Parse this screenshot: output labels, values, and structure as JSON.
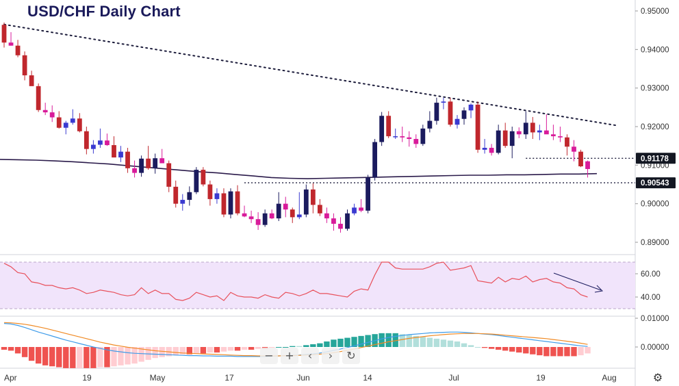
{
  "title": "USD/CHF Daily Chart",
  "colors": {
    "up": "#1b1b5e",
    "down": "#c0272d",
    "doji_up": "#3a3ad0",
    "doji_down": "#d81b9a",
    "ma": "#2a1a4a",
    "rsi": "#e8505b",
    "rsi_band": "#f1e4fb",
    "macd_line": "#3d9be9",
    "signal_line": "#f08a24",
    "hist_up_strong": "#26a69a",
    "hist_up_weak": "#b2dfdb",
    "hist_down_strong": "#ef5350",
    "hist_down_weak": "#ffcdd2",
    "badge_bg": "#131722"
  },
  "chart_data": [
    {
      "type": "candlestick",
      "title": "USD/CHF Daily Chart",
      "x_tick_labels": [
        "Apr",
        "19",
        "May",
        "17",
        "Jun",
        "14",
        "Jul",
        "19",
        "Aug"
      ],
      "y_tick_labels": [
        "0.95000",
        "0.94000",
        "0.93000",
        "0.92000",
        "0.91000",
        "0.90000",
        "0.89000"
      ],
      "ylim": [
        0.8875,
        0.9515
      ],
      "candles": [
        [
          0.9464,
          0.947,
          0.9405,
          0.9418
        ],
        [
          0.9418,
          0.9445,
          0.941,
          0.941
        ],
        [
          0.941,
          0.9425,
          0.938,
          0.9385
        ],
        [
          0.9385,
          0.9395,
          0.932,
          0.9333
        ],
        [
          0.9333,
          0.9345,
          0.931,
          0.9305
        ],
        [
          0.9305,
          0.9312,
          0.9238,
          0.9243
        ],
        [
          0.9243,
          0.9262,
          0.923,
          0.9237
        ],
        [
          0.9237,
          0.9255,
          0.9212,
          0.9224
        ],
        [
          0.9224,
          0.924,
          0.9195,
          0.9197
        ],
        [
          0.9197,
          0.9215,
          0.918,
          0.921
        ],
        [
          0.921,
          0.9245,
          0.9205,
          0.9221
        ],
        [
          0.9221,
          0.9235,
          0.9185,
          0.9188
        ],
        [
          0.9188,
          0.92,
          0.9128,
          0.9142
        ],
        [
          0.9142,
          0.9165,
          0.913,
          0.9153
        ],
        [
          0.9153,
          0.9195,
          0.9145,
          0.9164
        ],
        [
          0.9164,
          0.9182,
          0.915,
          0.9152
        ],
        [
          0.9152,
          0.9175,
          0.912,
          0.912
        ],
        [
          0.912,
          0.915,
          0.9108,
          0.9135
        ],
        [
          0.9135,
          0.9145,
          0.908,
          0.9092
        ],
        [
          0.9092,
          0.9112,
          0.9068,
          0.908
        ],
        [
          0.908,
          0.9125,
          0.907,
          0.9117
        ],
        [
          0.9117,
          0.915,
          0.9088,
          0.9092
        ],
        [
          0.9092,
          0.913,
          0.9078,
          0.9118
        ],
        [
          0.9118,
          0.9142,
          0.9105,
          0.9105
        ],
        [
          0.9105,
          0.9112,
          0.903,
          0.9044
        ],
        [
          0.9044,
          0.906,
          0.899,
          0.9
        ],
        [
          0.9,
          0.9025,
          0.8982,
          0.901
        ],
        [
          0.901,
          0.9045,
          0.8995,
          0.903
        ],
        [
          0.903,
          0.9095,
          0.9025,
          0.9088
        ],
        [
          0.9088,
          0.9095,
          0.9045,
          0.905
        ],
        [
          0.905,
          0.906,
          0.8995,
          0.9012
        ],
        [
          0.9012,
          0.904,
          0.9,
          0.9027
        ],
        [
          0.9027,
          0.904,
          0.8965,
          0.8972
        ],
        [
          0.8972,
          0.904,
          0.8962,
          0.9032
        ],
        [
          0.9032,
          0.9048,
          0.897,
          0.8975
        ],
        [
          0.8975,
          0.8995,
          0.8965,
          0.8967
        ],
        [
          0.8967,
          0.8982,
          0.895,
          0.896
        ],
        [
          0.896,
          0.8978,
          0.8932,
          0.8945
        ],
        [
          0.8945,
          0.8985,
          0.894,
          0.8975
        ],
        [
          0.8975,
          0.8985,
          0.896,
          0.8962
        ],
        [
          0.8962,
          0.903,
          0.8955,
          0.9
        ],
        [
          0.9,
          0.9018,
          0.8965,
          0.8985
        ],
        [
          0.8985,
          0.899,
          0.895,
          0.8965
        ],
        [
          0.8965,
          0.903,
          0.896,
          0.8972
        ],
        [
          0.8972,
          0.905,
          0.8965,
          0.9037
        ],
        [
          0.9037,
          0.9053,
          0.8975,
          0.8997
        ],
        [
          0.8997,
          0.9012,
          0.8968,
          0.8975
        ],
        [
          0.8975,
          0.899,
          0.895,
          0.8962
        ],
        [
          0.8962,
          0.8975,
          0.893,
          0.8948
        ],
        [
          0.8948,
          0.8965,
          0.8925,
          0.8935
        ],
        [
          0.8935,
          0.8985,
          0.893,
          0.8975
        ],
        [
          0.8975,
          0.9,
          0.897,
          0.899
        ],
        [
          0.899,
          0.9012,
          0.8978,
          0.8982
        ],
        [
          0.8982,
          0.9075,
          0.8975,
          0.9068
        ],
        [
          0.9068,
          0.9168,
          0.906,
          0.916
        ],
        [
          0.916,
          0.9238,
          0.915,
          0.9228
        ],
        [
          0.9228,
          0.924,
          0.917,
          0.9175
        ],
        [
          0.9175,
          0.9195,
          0.9168,
          0.9175
        ],
        [
          0.9175,
          0.92,
          0.916,
          0.9172
        ],
        [
          0.9172,
          0.9188,
          0.9148,
          0.9168
        ],
        [
          0.9168,
          0.918,
          0.9145,
          0.9155
        ],
        [
          0.9155,
          0.9205,
          0.915,
          0.9195
        ],
        [
          0.9195,
          0.924,
          0.9185,
          0.9215
        ],
        [
          0.9215,
          0.9275,
          0.9205,
          0.9262
        ],
        [
          0.9262,
          0.9275,
          0.9245,
          0.9265
        ],
        [
          0.9265,
          0.9275,
          0.92,
          0.9205
        ],
        [
          0.9205,
          0.923,
          0.9195,
          0.922
        ],
        [
          0.922,
          0.925,
          0.9205,
          0.9242
        ],
        [
          0.9242,
          0.926,
          0.9222,
          0.9257
        ],
        [
          0.9257,
          0.9265,
          0.9132,
          0.914
        ],
        [
          0.914,
          0.9168,
          0.913,
          0.9145
        ],
        [
          0.9145,
          0.9155,
          0.9125,
          0.9132
        ],
        [
          0.9132,
          0.9205,
          0.9128,
          0.919
        ],
        [
          0.919,
          0.921,
          0.9145,
          0.915
        ],
        [
          0.915,
          0.92,
          0.9118,
          0.9188
        ],
        [
          0.9188,
          0.9198,
          0.917,
          0.918
        ],
        [
          0.918,
          0.924,
          0.9168,
          0.921
        ],
        [
          0.921,
          0.9225,
          0.9168,
          0.9185
        ],
        [
          0.9185,
          0.9205,
          0.9165,
          0.919
        ],
        [
          0.919,
          0.9232,
          0.9182,
          0.918
        ],
        [
          0.918,
          0.9205,
          0.9165,
          0.9175
        ],
        [
          0.9175,
          0.92,
          0.916,
          0.9172
        ],
        [
          0.9172,
          0.918,
          0.9125,
          0.9148
        ],
        [
          0.9148,
          0.9165,
          0.911,
          0.9135
        ],
        [
          0.9135,
          0.914,
          0.9095,
          0.9097
        ],
        [
          0.909,
          0.9112,
          0.9068,
          0.911
        ]
      ],
      "moving_average": [
        0.9115,
        0.9114,
        0.9113,
        0.9111,
        0.9109,
        0.9106,
        0.9103,
        0.9099,
        0.9095,
        0.9091,
        0.9087,
        0.9083,
        0.908,
        0.9076,
        0.9072,
        0.9068,
        0.9066,
        0.9065,
        0.9066,
        0.9067,
        0.9068,
        0.9069,
        0.907,
        0.9071,
        0.9072,
        0.9073,
        0.9074,
        0.9074,
        0.9075,
        0.9075,
        0.9076,
        0.9077,
        0.9077,
        0.9078
      ],
      "trendline": {
        "start": [
          0,
          0.9465
        ],
        "end": [
          86,
          0.9208
        ]
      },
      "support_level_1": "0.91178",
      "support_level_2": "0.90543"
    },
    {
      "type": "line",
      "name": "RSI",
      "y_tick_labels": [
        "60.00",
        "40.00"
      ],
      "ylim": [
        23,
        75
      ],
      "band": [
        30,
        70
      ],
      "values": [
        69,
        66,
        61,
        60,
        53,
        52,
        50,
        50,
        48,
        47,
        48,
        46,
        43,
        44,
        46,
        45,
        44,
        42,
        41,
        42,
        48,
        43,
        46,
        43,
        43,
        38,
        37,
        39,
        44,
        42,
        40,
        41,
        37,
        44,
        41,
        40,
        40,
        39,
        42,
        40,
        39,
        44,
        43,
        41,
        43,
        46,
        43,
        43,
        42,
        41,
        40,
        45,
        47,
        46,
        59,
        70,
        70,
        65,
        64,
        64,
        64,
        64,
        66,
        69,
        70,
        63,
        64,
        65,
        67,
        54,
        53,
        52,
        57,
        53,
        56,
        55,
        58,
        53,
        55,
        56,
        53,
        52,
        48,
        47,
        42,
        40
      ]
    },
    {
      "type": "bar",
      "name": "MACD",
      "y_tick_labels": [
        "0.01000",
        "0.00000"
      ],
      "ylim": [
        -0.0042,
        0.0115
      ],
      "macd": [
        0.0082,
        0.008,
        0.0075,
        0.0068,
        0.006,
        0.0052,
        0.0045,
        0.0038,
        0.0031,
        0.0024,
        0.0018,
        0.0012,
        0.0006,
        0.0,
        -0.0005,
        -0.001,
        -0.0014,
        -0.0017,
        -0.002,
        -0.0022,
        -0.0023,
        -0.0024,
        -0.0025,
        -0.0026,
        -0.0027,
        -0.0028,
        -0.0029,
        -0.003,
        -0.003,
        -0.0031,
        -0.0031,
        -0.0032,
        -0.0032,
        -0.0032,
        -0.0033,
        -0.0033,
        -0.0033,
        -0.0033,
        -0.0033,
        -0.0032,
        -0.0031,
        -0.003,
        -0.0029,
        -0.0028,
        -0.0026,
        -0.0024,
        -0.0021,
        -0.0017,
        -0.0012,
        -0.0007,
        -0.0002,
        0.0004,
        0.001,
        0.0016,
        0.0022,
        0.0028,
        0.0033,
        0.0037,
        0.004,
        0.0043,
        0.0045,
        0.0047,
        0.0049,
        0.005,
        0.0051,
        0.0052,
        0.0052,
        0.0051,
        0.0049,
        0.0047,
        0.0045,
        0.0043,
        0.004,
        0.0037,
        0.0034,
        0.0031,
        0.0028,
        0.0025,
        0.0022,
        0.0019,
        0.0016,
        0.0013,
        0.001,
        0.0007,
        0.0004,
        0.0002
      ],
      "signal": [
        0.0085,
        0.0084,
        0.0082,
        0.0079,
        0.0075,
        0.007,
        0.0065,
        0.0059,
        0.0053,
        0.0047,
        0.0041,
        0.0035,
        0.0029,
        0.0023,
        0.0017,
        0.0012,
        0.0007,
        0.0003,
        -0.0001,
        -0.0004,
        -0.0007,
        -0.001,
        -0.0013,
        -0.0015,
        -0.0017,
        -0.0019,
        -0.0021,
        -0.0022,
        -0.0023,
        -0.0024,
        -0.0025,
        -0.0026,
        -0.0027,
        -0.0028,
        -0.0029,
        -0.003,
        -0.003,
        -0.0031,
        -0.0031,
        -0.0031,
        -0.0031,
        -0.003,
        -0.003,
        -0.0029,
        -0.0028,
        -0.0027,
        -0.0025,
        -0.0023,
        -0.002,
        -0.0016,
        -0.0012,
        -0.0007,
        -0.0002,
        0.0003,
        0.0008,
        0.0013,
        0.0018,
        0.0022,
        0.0026,
        0.003,
        0.0033,
        0.0036,
        0.0039,
        0.0041,
        0.0043,
        0.0045,
        0.0046,
        0.0047,
        0.0047,
        0.0047,
        0.0046,
        0.0045,
        0.0043,
        0.0041,
        0.0039,
        0.0037,
        0.0035,
        0.0033,
        0.0031,
        0.0029,
        0.0026,
        0.0023,
        0.002,
        0.0017,
        0.0013,
        0.0009
      ]
    }
  ],
  "toolbar": {
    "zoom_out": "−",
    "zoom_in": "+",
    "scroll_left": "‹",
    "scroll_right": "›",
    "reset": "↻"
  },
  "settings_icon": "⚙"
}
